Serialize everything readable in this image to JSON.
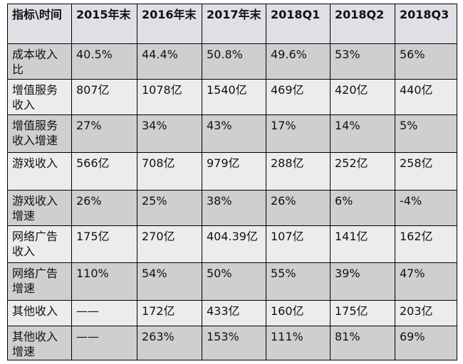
{
  "table": {
    "header": [
      "指标\\时间",
      "2015年末",
      "2016年末",
      "2017年末",
      "2018Q1",
      "2018Q2",
      "2018Q3"
    ],
    "rows": [
      [
        "成本收入比",
        "40.5%",
        "44.4%",
        "50.8%",
        "49.6%",
        "53%",
        "56%"
      ],
      [
        "增值服务收入",
        "807亿",
        "1078亿",
        "1540亿",
        "469亿",
        "420亿",
        "440亿"
      ],
      [
        "增值服务收入增速",
        "27%",
        "34%",
        "43%",
        "17%",
        "14%",
        "5%"
      ],
      [
        "游戏收入",
        "566亿",
        "708亿",
        "979亿",
        "288亿",
        "252亿",
        "258亿"
      ],
      [
        "游戏收入增速",
        "26%",
        "25%",
        "38%",
        "26%",
        "6%",
        "-4%"
      ],
      [
        "网络广告收入",
        "175亿",
        "270亿",
        "404.39亿",
        "107亿",
        "141亿",
        "162亿"
      ],
      [
        "网络广告增速",
        "110%",
        "54%",
        "50%",
        "55%",
        "39%",
        "47%"
      ],
      [
        "其他收入",
        "——",
        "172亿",
        "433亿",
        "160亿",
        "175亿",
        "203亿"
      ],
      [
        "其他收入增速",
        "——",
        "263%",
        "153%",
        "111%",
        "81%",
        "69%"
      ]
    ]
  }
}
